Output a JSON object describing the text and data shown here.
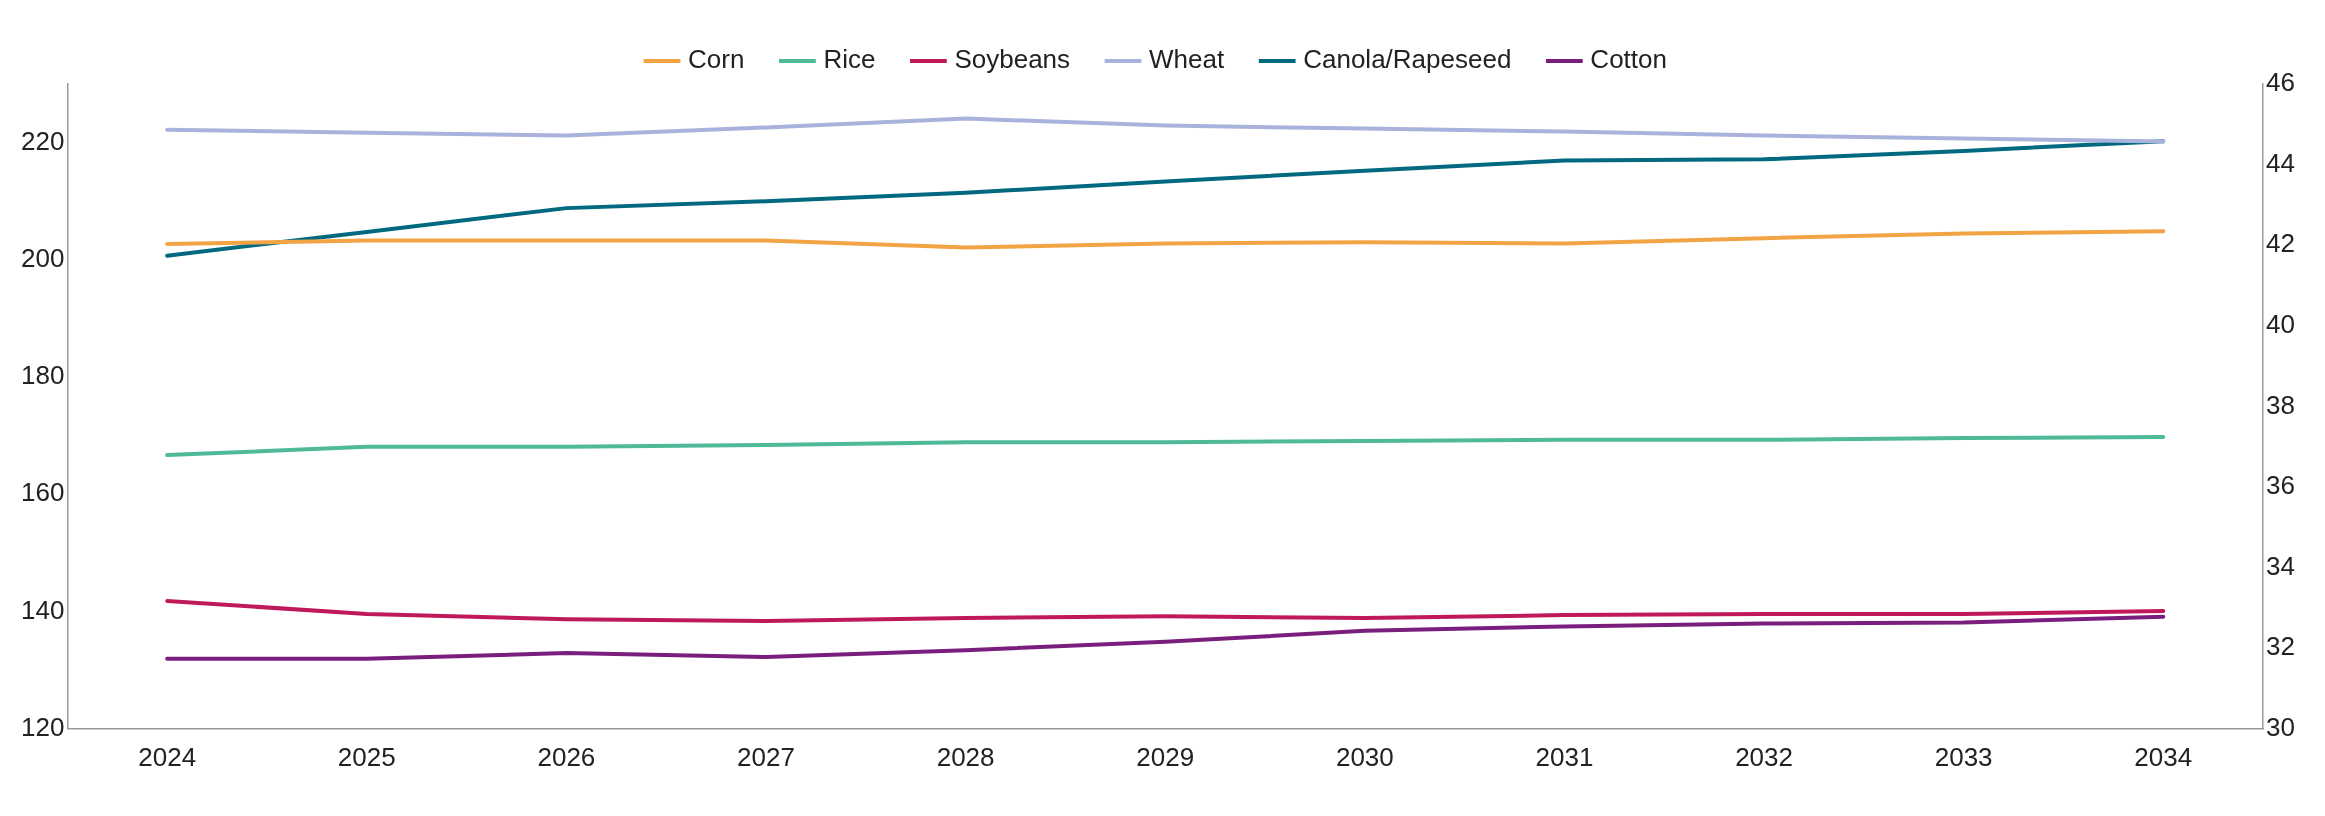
{
  "chart_data": {
    "type": "line",
    "categories": [
      "2024",
      "2025",
      "2026",
      "2027",
      "2028",
      "2029",
      "2030",
      "2031",
      "2032",
      "2033",
      "2034"
    ],
    "series": [
      {
        "name": "Corn",
        "color": "#f2a444",
        "values": [
          202.7,
          203.3,
          203.3,
          203.3,
          202.1,
          202.8,
          203.0,
          202.8,
          203.7,
          204.5,
          204.9
        ]
      },
      {
        "name": "Rice",
        "color": "#4fb99a",
        "values": [
          166.7,
          168.1,
          168.1,
          168.4,
          168.9,
          168.9,
          169.1,
          169.3,
          169.3,
          169.6,
          169.8
        ]
      },
      {
        "name": "Soybeans",
        "color": "#c0195a",
        "values": [
          141.8,
          139.6,
          138.7,
          138.4,
          138.9,
          139.2,
          138.9,
          139.4,
          139.6,
          139.6,
          140.1
        ]
      },
      {
        "name": "Wheat",
        "color": "#a9b2dc",
        "values": [
          222.2,
          221.7,
          221.2,
          222.6,
          224.1,
          222.9,
          222.4,
          221.9,
          221.2,
          220.7,
          220.2
        ]
      },
      {
        "name": "Canola/Rapeseed",
        "color": "#00697f",
        "axis": "y2",
        "values": [
          41.74,
          42.33,
          42.92,
          43.09,
          43.3,
          43.58,
          43.85,
          44.1,
          44.13,
          44.34,
          44.58
        ]
      },
      {
        "name": "Cotton",
        "color": "#7a1e7e",
        "axis": "y2",
        "values": [
          31.74,
          31.74,
          31.88,
          31.78,
          31.95,
          32.16,
          32.43,
          32.54,
          32.61,
          32.64,
          32.78
        ]
      }
    ],
    "ylim": [
      120,
      230
    ],
    "yticks": [
      120,
      140,
      160,
      180,
      200,
      220
    ],
    "y2lim": [
      30,
      46
    ],
    "y2ticks": [
      30,
      32,
      34,
      36,
      38,
      40,
      42,
      44,
      46
    ],
    "grid": false,
    "legend": "top",
    "marker": "none",
    "line_style": "solid"
  }
}
